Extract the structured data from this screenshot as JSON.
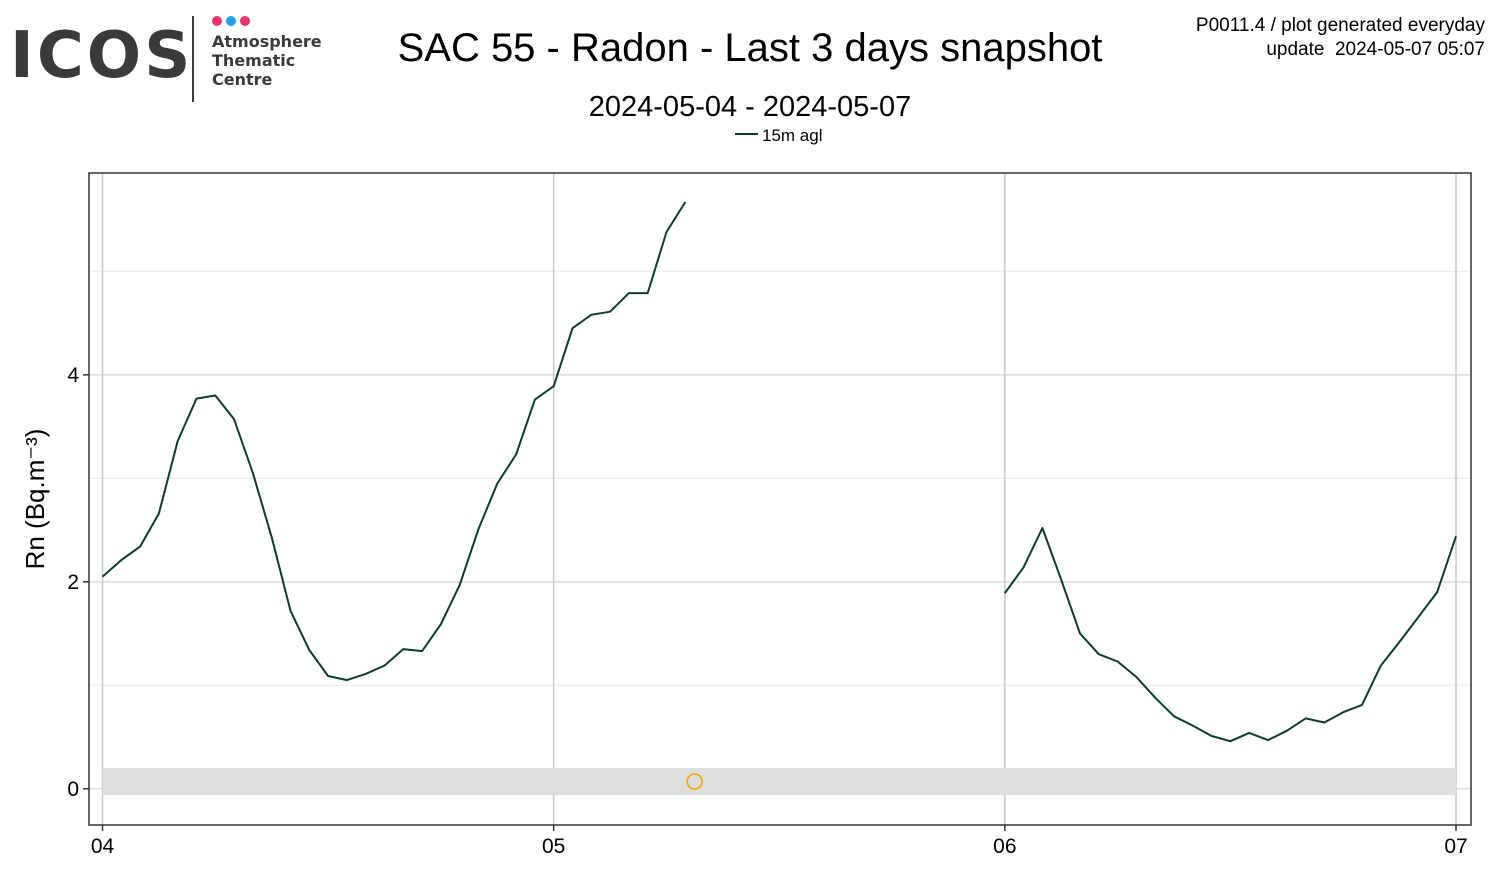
{
  "logo": {
    "wordmark": "ICOS",
    "line1": "Atmosphere",
    "line2": "Thematic",
    "line3": "Centre",
    "dot_colors": [
      "#e6336f",
      "#1ea0e6",
      "#e6336f"
    ]
  },
  "header": {
    "title": "SAC 55 - Radon - Last 3 days snapshot",
    "subtitle": "2024-05-04 - 2024-05-07",
    "meta_line1": "P0011.4 / plot generated everyday",
    "meta_line2": "update  2024-05-07 05:07"
  },
  "chart_data": {
    "type": "line",
    "xlabel": "",
    "ylabel": "Rn (Bq.m⁻³)",
    "x_ticks": [
      "04",
      "05",
      "06",
      "07"
    ],
    "x_range_days": [
      "2024-05-04 00:00",
      "2024-05-07 00:00"
    ],
    "y_ticks": [
      0,
      2,
      4
    ],
    "ylim": [
      -0.35,
      5.95
    ],
    "grid": true,
    "legend_position": "top-center",
    "colors": {
      "line": "#0d3b2e",
      "gap_marker": "#f5a000",
      "zero_band": "#dcdcdc"
    },
    "series": [
      {
        "name": "15m agl",
        "segments": [
          [
            [
              "2024-05-04 00:00",
              2.05
            ],
            [
              "2024-05-04 01:00",
              2.21
            ],
            [
              "2024-05-04 02:00",
              2.34
            ],
            [
              "2024-05-04 03:00",
              2.66
            ],
            [
              "2024-05-04 04:00",
              3.36
            ],
            [
              "2024-05-04 05:00",
              3.77
            ],
            [
              "2024-05-04 06:00",
              3.8
            ],
            [
              "2024-05-04 07:00",
              3.57
            ],
            [
              "2024-05-04 08:00",
              3.05
            ],
            [
              "2024-05-04 09:00",
              2.43
            ],
            [
              "2024-05-04 10:00",
              1.72
            ],
            [
              "2024-05-04 11:00",
              1.34
            ],
            [
              "2024-05-04 12:00",
              1.09
            ],
            [
              "2024-05-04 13:00",
              1.05
            ],
            [
              "2024-05-04 14:00",
              1.11
            ],
            [
              "2024-05-04 15:00",
              1.19
            ],
            [
              "2024-05-04 16:00",
              1.35
            ],
            [
              "2024-05-04 17:00",
              1.33
            ],
            [
              "2024-05-04 18:00",
              1.59
            ],
            [
              "2024-05-04 19:00",
              1.97
            ],
            [
              "2024-05-04 20:00",
              2.51
            ],
            [
              "2024-05-04 21:00",
              2.95
            ],
            [
              "2024-05-04 22:00",
              3.23
            ],
            [
              "2024-05-04 23:00",
              3.76
            ],
            [
              "2024-05-05 00:00",
              3.89
            ],
            [
              "2024-05-05 01:00",
              4.45
            ],
            [
              "2024-05-05 02:00",
              4.58
            ],
            [
              "2024-05-05 03:00",
              4.61
            ],
            [
              "2024-05-05 04:00",
              4.79
            ],
            [
              "2024-05-05 05:00",
              4.79
            ],
            [
              "2024-05-05 06:00",
              5.38
            ],
            [
              "2024-05-05 07:00",
              5.67
            ]
          ],
          [
            [
              "2024-05-06 00:00",
              1.89
            ],
            [
              "2024-05-06 01:00",
              2.14
            ],
            [
              "2024-05-06 02:00",
              2.52
            ],
            [
              "2024-05-06 03:00",
              2.02
            ],
            [
              "2024-05-06 04:00",
              1.5
            ],
            [
              "2024-05-06 05:00",
              1.3
            ],
            [
              "2024-05-06 06:00",
              1.23
            ],
            [
              "2024-05-06 07:00",
              1.08
            ],
            [
              "2024-05-06 08:00",
              0.88
            ],
            [
              "2024-05-06 09:00",
              0.7
            ],
            [
              "2024-05-06 10:00",
              0.61
            ],
            [
              "2024-05-06 11:00",
              0.51
            ],
            [
              "2024-05-06 12:00",
              0.46
            ],
            [
              "2024-05-06 13:00",
              0.54
            ],
            [
              "2024-05-06 14:00",
              0.47
            ],
            [
              "2024-05-06 15:00",
              0.56
            ],
            [
              "2024-05-06 16:00",
              0.68
            ],
            [
              "2024-05-06 17:00",
              0.64
            ],
            [
              "2024-05-06 18:00",
              0.74
            ],
            [
              "2024-05-06 19:00",
              0.81
            ],
            [
              "2024-05-06 20:00",
              1.19
            ],
            [
              "2024-05-06 21:00",
              1.42
            ],
            [
              "2024-05-06 22:00",
              1.66
            ],
            [
              "2024-05-06 23:00",
              1.9
            ],
            [
              "2024-05-07 00:00",
              2.44
            ]
          ]
        ]
      }
    ],
    "zero_band": [
      -0.06,
      0.2
    ],
    "gap_marker": [
      "2024-05-05 07:30",
      0.07
    ]
  }
}
